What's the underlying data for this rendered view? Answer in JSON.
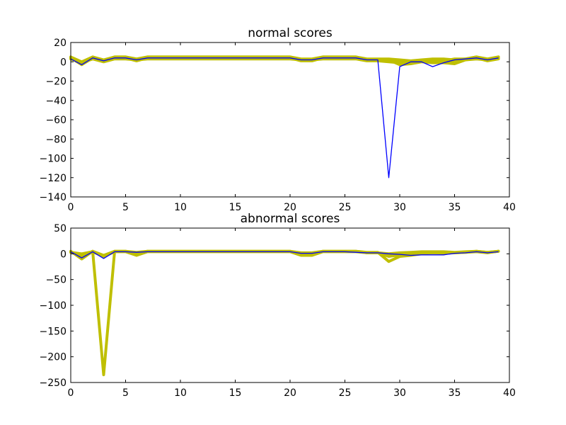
{
  "chart_data": [
    {
      "type": "line",
      "title": "normal scores",
      "xlabel": "",
      "ylabel": "",
      "xlim": [
        0,
        40
      ],
      "ylim": [
        -140,
        20
      ],
      "xticks": [
        0,
        5,
        10,
        15,
        20,
        25,
        30,
        35,
        40
      ],
      "yticks": [
        20,
        0,
        -20,
        -40,
        -60,
        -80,
        -100,
        -120,
        -140
      ],
      "grid": false,
      "legend": "none",
      "colors": {
        "reference": "#bfbf00",
        "test": "#0000ff",
        "overlap": "#3f3f5f"
      },
      "series": [
        {
          "role": "reference",
          "lines": [
            {
              "y": [
                5,
                0,
                5,
                2,
                5,
                5,
                3,
                5,
                5,
                5,
                5,
                5,
                5,
                5,
                5,
                5,
                5,
                5,
                5,
                5,
                5,
                3,
                3,
                5,
                5,
                5,
                5,
                3,
                3,
                3,
                2,
                1,
                2,
                3,
                3,
                2,
                3,
                5,
                3,
                5
              ]
            },
            {
              "y": [
                4,
                -3,
                4,
                1,
                4,
                4,
                1,
                4,
                4,
                4,
                4,
                4,
                4,
                4,
                4,
                4,
                4,
                4,
                4,
                4,
                4,
                1,
                1,
                4,
                4,
                4,
                4,
                2,
                2,
                2,
                -3,
                -2,
                0,
                -1,
                -1,
                -2,
                2,
                3,
                2,
                4
              ]
            },
            {
              "y": [
                3,
                -1,
                3,
                0,
                3,
                3,
                2,
                3,
                3,
                3,
                3,
                3,
                3,
                3,
                3,
                3,
                3,
                3,
                3,
                3,
                3,
                2,
                2,
                3,
                3,
                3,
                3,
                1,
                1,
                0,
                -1,
                -1,
                1,
                1,
                0,
                1,
                2,
                4,
                1,
                3
              ]
            },
            {
              "y": [
                5,
                -2,
                5,
                1,
                5,
                5,
                2,
                5,
                5,
                5,
                5,
                5,
                5,
                5,
                5,
                5,
                5,
                5,
                5,
                5,
                5,
                2,
                2,
                5,
                5,
                5,
                5,
                2,
                2,
                1,
                0,
                0,
                1,
                2,
                1,
                3,
                3,
                5,
                2,
                5
              ]
            }
          ]
        },
        {
          "role": "test",
          "y": [
            3,
            -3,
            4,
            1,
            4,
            4,
            2,
            4,
            4,
            4,
            4,
            4,
            4,
            4,
            4,
            4,
            4,
            4,
            4,
            4,
            4,
            2,
            2,
            4,
            4,
            4,
            4,
            2,
            2,
            -120,
            -5,
            0,
            0,
            -5,
            -1,
            2,
            3,
            4,
            2,
            4
          ]
        }
      ]
    },
    {
      "type": "line",
      "title": "abnormal scores",
      "xlabel": "",
      "ylabel": "",
      "xlim": [
        0,
        40
      ],
      "ylim": [
        -250,
        50
      ],
      "xticks": [
        0,
        5,
        10,
        15,
        20,
        25,
        30,
        35,
        40
      ],
      "yticks": [
        50,
        0,
        -50,
        -100,
        -150,
        -200,
        -250
      ],
      "grid": false,
      "legend": "none",
      "colors": {
        "reference": "#bfbf00",
        "test": "#0000ff",
        "overlap": "#3f3f5f"
      },
      "series": [
        {
          "role": "reference",
          "lines": [
            {
              "y": [
                5,
                -10,
                5,
                -235,
                5,
                5,
                3,
                5,
                5,
                5,
                5,
                5,
                5,
                5,
                5,
                5,
                5,
                5,
                5,
                5,
                5,
                2,
                2,
                5,
                5,
                5,
                5,
                3,
                3,
                -15,
                -5,
                -3,
                0,
                2,
                1,
                2,
                3,
                5,
                3,
                5
              ]
            },
            {
              "y": [
                3,
                0,
                4,
                -5,
                4,
                4,
                -3,
                4,
                4,
                4,
                4,
                4,
                4,
                4,
                4,
                4,
                4,
                4,
                4,
                4,
                4,
                -3,
                -3,
                4,
                4,
                4,
                4,
                2,
                2,
                0,
                2,
                3,
                4,
                4,
                4,
                3,
                4,
                5,
                3,
                5
              ]
            },
            {
              "y": [
                4,
                -5,
                5,
                -3,
                5,
                5,
                1,
                5,
                5,
                5,
                5,
                5,
                5,
                5,
                5,
                5,
                5,
                5,
                5,
                5,
                5,
                0,
                0,
                5,
                5,
                5,
                5,
                2,
                2,
                -5,
                -2,
                -1,
                1,
                3,
                3,
                2,
                3,
                4,
                2,
                5
              ]
            }
          ]
        },
        {
          "role": "test",
          "y": [
            4,
            -8,
            4,
            -9,
            4,
            4,
            3,
            4,
            4,
            4,
            4,
            4,
            4,
            4,
            4,
            4,
            4,
            4,
            4,
            4,
            4,
            1,
            1,
            4,
            4,
            4,
            3,
            2,
            2,
            0,
            -1,
            -3,
            -2,
            -2,
            -2,
            1,
            2,
            4,
            2,
            4
          ]
        }
      ]
    }
  ]
}
